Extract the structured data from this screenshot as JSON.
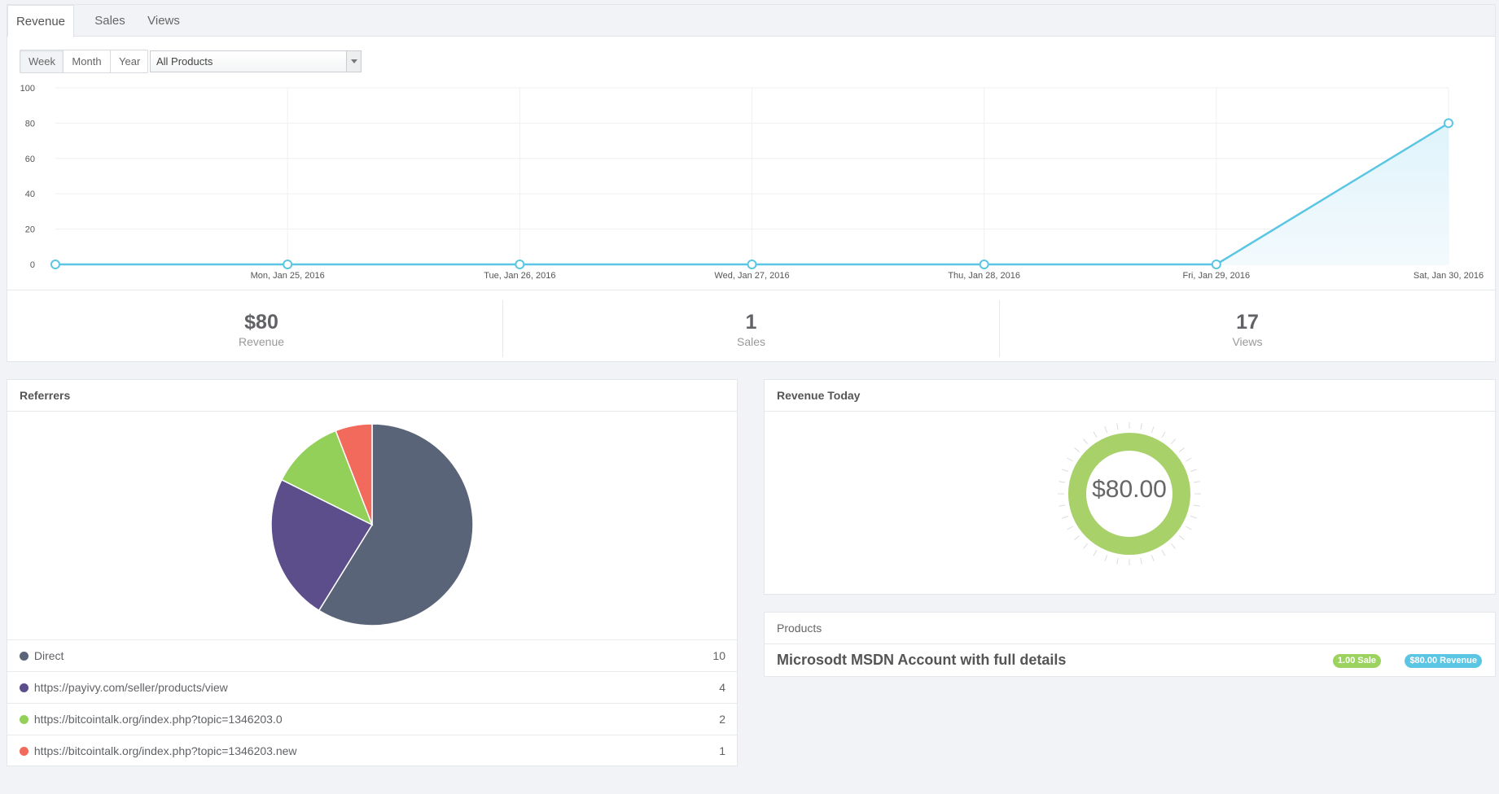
{
  "tabs": [
    {
      "label": "Revenue",
      "active": true
    },
    {
      "label": "Sales",
      "active": false
    },
    {
      "label": "Views",
      "active": false
    }
  ],
  "range_buttons": [
    {
      "label": "Week",
      "active": true
    },
    {
      "label": "Month",
      "active": false
    },
    {
      "label": "Year",
      "active": false
    }
  ],
  "product_filter": {
    "selected": "All Products"
  },
  "chart_data": {
    "type": "area",
    "x": [
      "",
      "Mon, Jan 25, 2016",
      "Tue, Jan 26, 2016",
      "Wed, Jan 27, 2016",
      "Thu, Jan 28, 2016",
      "Fri, Jan 29, 2016",
      "Sat, Jan 30, 2016"
    ],
    "values": [
      0,
      0,
      0,
      0,
      0,
      0,
      80
    ],
    "y_ticks": [
      "0",
      "20",
      "40",
      "60",
      "80",
      "100"
    ],
    "ylim": [
      0,
      100
    ],
    "grid": true,
    "color": "#5bc6e3"
  },
  "stats": {
    "revenue": {
      "value": "$80",
      "label": "Revenue"
    },
    "sales": {
      "value": "1",
      "label": "Sales"
    },
    "views": {
      "value": "17",
      "label": "Views"
    }
  },
  "referrers": {
    "title": "Referrers",
    "items": [
      {
        "label": "Direct",
        "count": "10",
        "value": 10,
        "color": "#5a6478"
      },
      {
        "label": "https://payivy.com/seller/products/view",
        "count": "4",
        "value": 4,
        "color": "#5b4e8b"
      },
      {
        "label": "https://bitcointalk.org/index.php?topic=1346203.0",
        "count": "2",
        "value": 2,
        "color": "#92d05a"
      },
      {
        "label": "https://bitcointalk.org/index.php?topic=1346203.new",
        "count": "1",
        "value": 1,
        "color": "#f26a5b"
      }
    ]
  },
  "revenue_today": {
    "title": "Revenue Today",
    "value": "$80.00",
    "fraction": 1.0,
    "color": "#a9d16a"
  },
  "products": {
    "title": "Products",
    "items": [
      {
        "name": "Microsodt MSDN Account with full details",
        "sale_badge": "1.00 Sale",
        "revenue_badge": "$80.00 Revenue"
      }
    ]
  }
}
